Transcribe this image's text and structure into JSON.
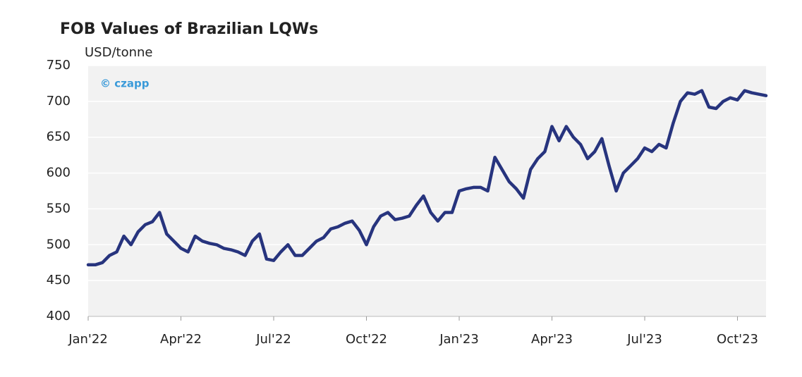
{
  "chart_data": {
    "type": "line",
    "title": "FOB Values of Brazilian LQWs",
    "y_label": "USD/tonne",
    "watermark": "© czapp",
    "categories": [
      "Jan'22",
      null,
      null,
      null,
      null,
      null,
      null,
      null,
      null,
      null,
      null,
      null,
      null,
      "Apr'22",
      null,
      null,
      null,
      null,
      null,
      null,
      null,
      null,
      null,
      null,
      null,
      null,
      "Jul'22",
      null,
      null,
      null,
      null,
      null,
      null,
      null,
      null,
      null,
      null,
      null,
      null,
      "Oct'22",
      null,
      null,
      null,
      null,
      null,
      null,
      null,
      null,
      null,
      null,
      null,
      null,
      "Jan'23",
      null,
      null,
      null,
      null,
      null,
      null,
      null,
      null,
      null,
      null,
      null,
      null,
      "Apr'23",
      null,
      null,
      null,
      null,
      null,
      null,
      null,
      null,
      null,
      null,
      null,
      null,
      "Jul'23",
      null,
      null,
      null,
      null,
      null,
      null,
      null,
      null,
      null,
      null,
      null,
      null,
      "Oct'23",
      null,
      null,
      null,
      null
    ],
    "values": [
      472,
      472,
      475,
      485,
      490,
      512,
      500,
      518,
      528,
      532,
      545,
      515,
      505,
      495,
      490,
      512,
      505,
      502,
      500,
      495,
      493,
      490,
      485,
      505,
      515,
      480,
      478,
      490,
      500,
      485,
      485,
      495,
      505,
      510,
      522,
      525,
      530,
      533,
      520,
      500,
      525,
      540,
      545,
      535,
      537,
      540,
      555,
      568,
      545,
      533,
      545,
      545,
      575,
      578,
      580,
      580,
      575,
      622,
      605,
      588,
      578,
      565,
      605,
      620,
      630,
      665,
      645,
      665,
      650,
      640,
      620,
      630,
      648,
      610,
      575,
      600,
      610,
      620,
      635,
      630,
      640,
      635,
      670,
      700,
      712,
      710,
      715,
      692,
      690,
      700,
      705,
      702,
      715,
      712,
      710,
      708
    ],
    "color": "#27347e",
    "ylim": [
      400,
      750
    ],
    "yticks": [
      400,
      450,
      500,
      550,
      600,
      650,
      700,
      750
    ],
    "grid": true
  }
}
